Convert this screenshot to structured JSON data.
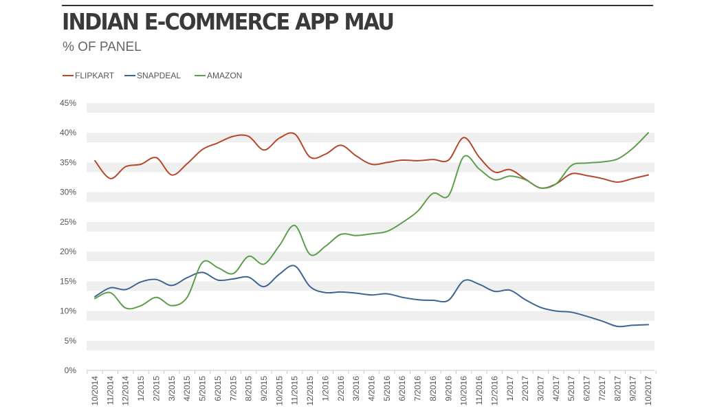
{
  "chart_data": {
    "type": "line",
    "title": "INDIAN E-COMMERCE APP MAU",
    "subtitle": "% OF PANEL",
    "xlabel": "",
    "ylabel": "",
    "ylim": [
      0,
      45
    ],
    "yticks": [
      "0%",
      "5%",
      "10%",
      "15%",
      "20%",
      "25%",
      "30%",
      "35%",
      "40%",
      "45%"
    ],
    "categories": [
      "10/2014",
      "11/2014",
      "12/2014",
      "1/2015",
      "2/2015",
      "3/2015",
      "4/2015",
      "5/2015",
      "6/2015",
      "7/2015",
      "8/2015",
      "9/2015",
      "10/2015",
      "11/2015",
      "12/2015",
      "1/2016",
      "2/2016",
      "3/2016",
      "4/2016",
      "5/2016",
      "6/2016",
      "7/2016",
      "8/2016",
      "9/2016",
      "10/2016",
      "11/2016",
      "12/2016",
      "1/2017",
      "2/2017",
      "3/2017",
      "4/2017",
      "5/2017",
      "6/2017",
      "7/2017",
      "8/2017",
      "9/2017",
      "10/2017"
    ],
    "series": [
      {
        "name": "FLIPKART",
        "color": "#b5472b",
        "values": [
          35.3,
          32.3,
          34.3,
          34.7,
          35.8,
          32.9,
          34.8,
          37.2,
          38.3,
          39.4,
          39.4,
          37.1,
          39.1,
          39.8,
          35.9,
          36.4,
          37.9,
          36.1,
          34.7,
          35.0,
          35.4,
          35.3,
          35.5,
          35.4,
          39.2,
          35.9,
          33.4,
          33.8,
          32.2,
          30.7,
          31.4,
          33.1,
          32.8,
          32.3,
          31.7,
          32.3,
          32.9
        ]
      },
      {
        "name": "SNAPDEAL",
        "color": "#3e6494",
        "values": [
          12.4,
          13.9,
          13.6,
          14.9,
          15.3,
          14.3,
          15.6,
          16.5,
          15.2,
          15.4,
          15.7,
          14.1,
          16.2,
          17.6,
          14.1,
          13.1,
          13.2,
          13.0,
          12.7,
          12.9,
          12.3,
          11.9,
          11.8,
          11.8,
          15.1,
          14.5,
          13.3,
          13.5,
          11.9,
          10.6,
          10.0,
          9.8,
          9.1,
          8.3,
          7.4,
          7.6,
          7.7
        ]
      },
      {
        "name": "AMAZON",
        "color": "#5c9e4b",
        "values": [
          12.1,
          13.1,
          10.5,
          10.9,
          12.3,
          10.9,
          12.3,
          18.2,
          17.3,
          16.3,
          19.2,
          17.9,
          21.0,
          24.4,
          19.5,
          20.9,
          22.9,
          22.7,
          23.0,
          23.4,
          24.9,
          26.8,
          29.8,
          29.4,
          36.0,
          33.9,
          32.1,
          32.7,
          32.1,
          30.7,
          31.4,
          34.5,
          34.9,
          35.1,
          35.6,
          37.4,
          40.0
        ]
      }
    ]
  }
}
